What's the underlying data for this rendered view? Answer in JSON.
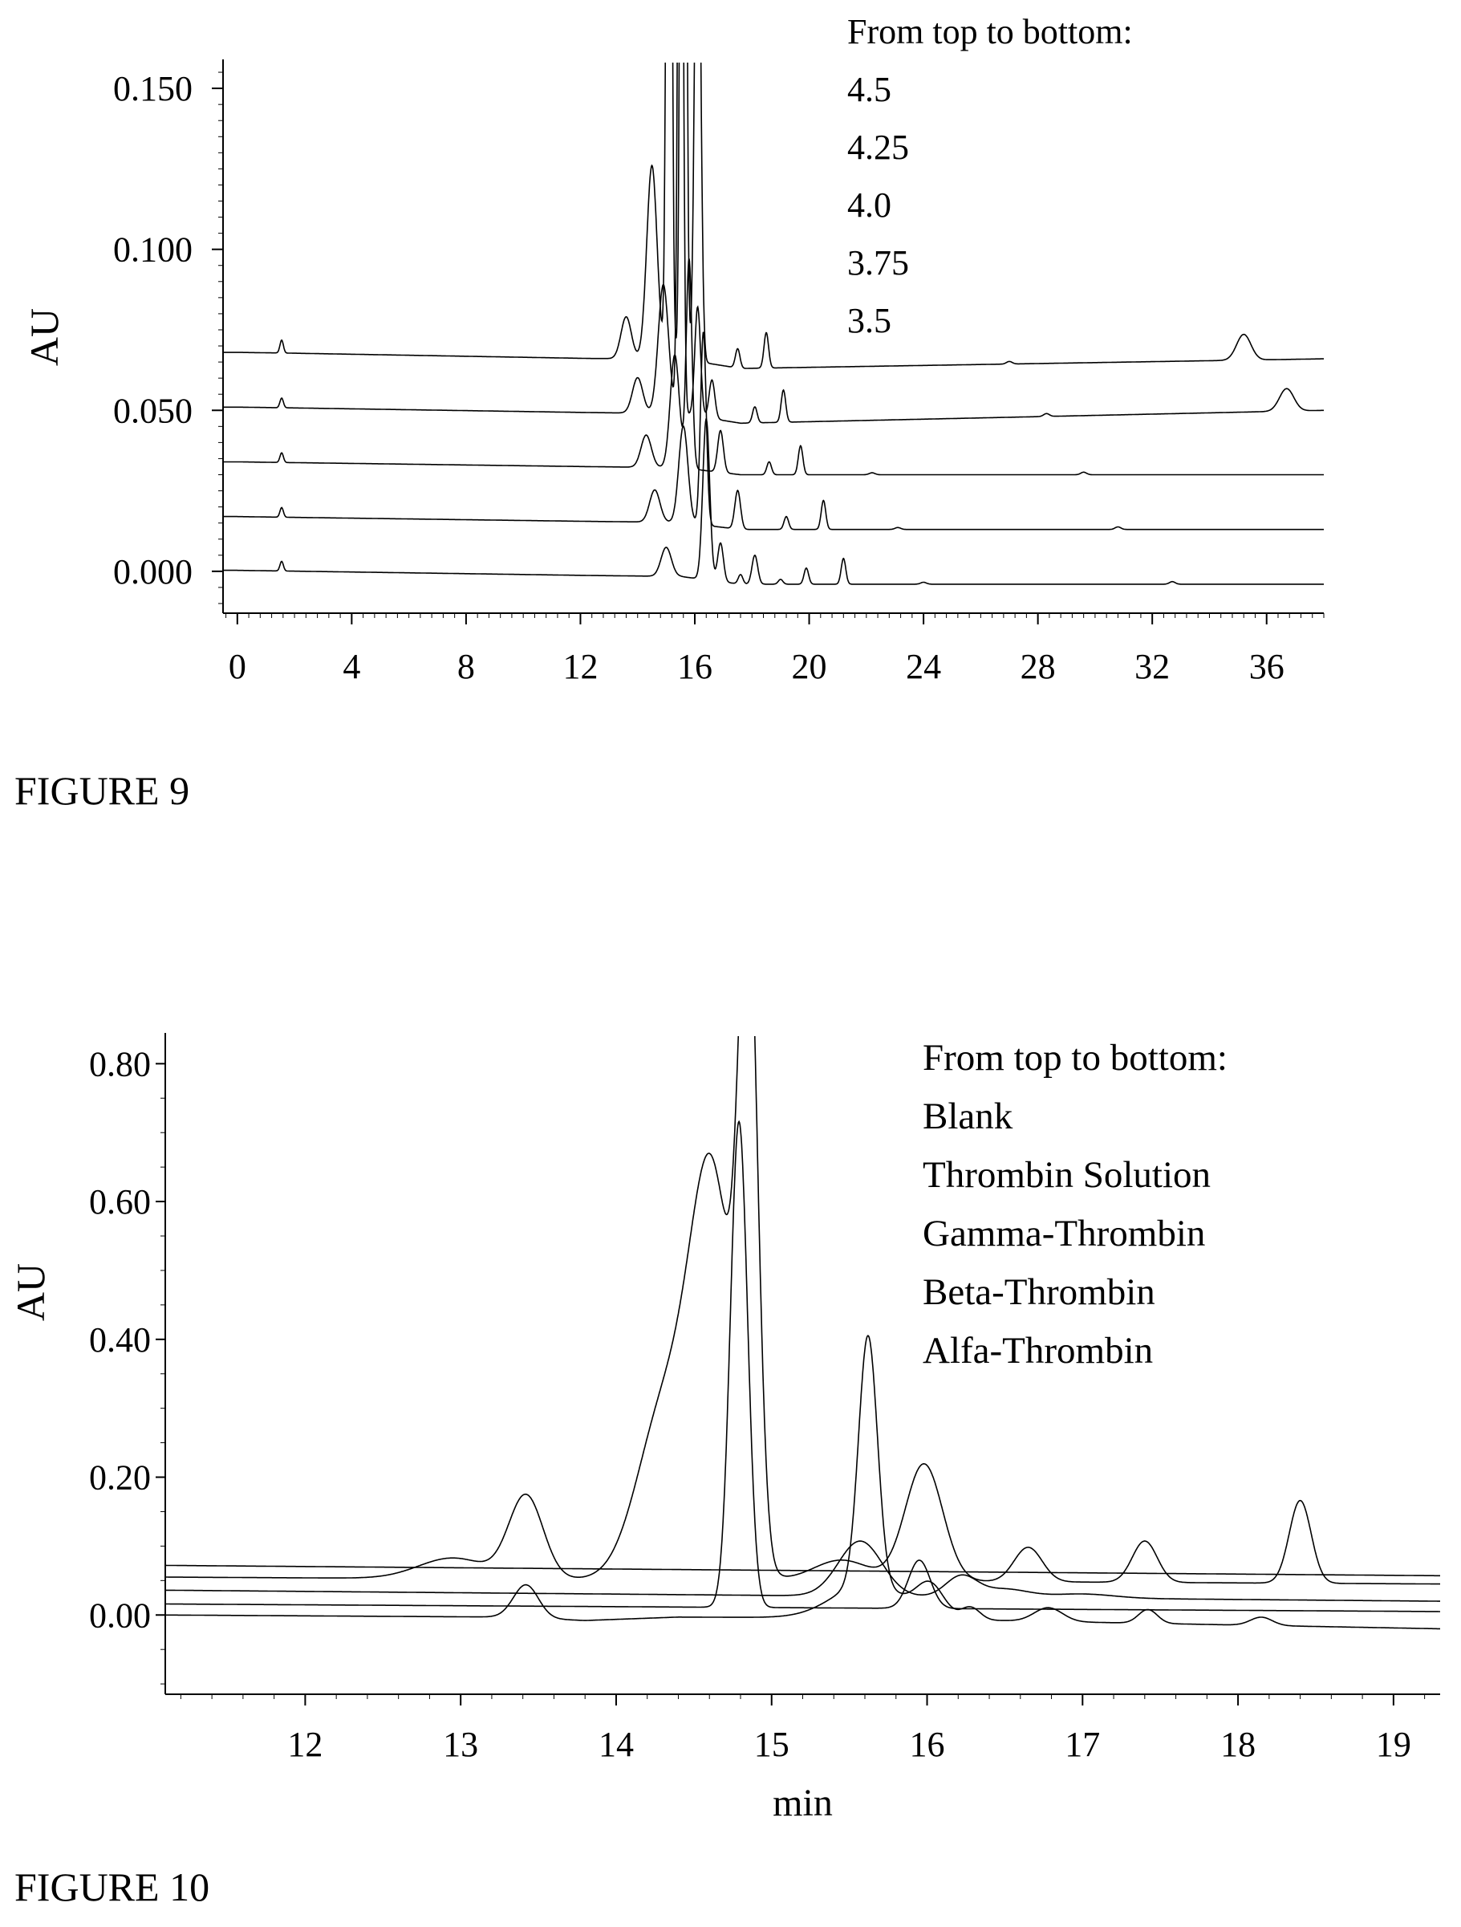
{
  "figures": [
    {
      "caption": "FIGURE 9",
      "chart_data": {
        "type": "line",
        "title": "",
        "xlabel": "",
        "ylabel": "AU",
        "xlim": [
          -0.5,
          38
        ],
        "ylim": [
          -0.013,
          0.158
        ],
        "xticks": [
          "0",
          "4",
          "8",
          "12",
          "16",
          "20",
          "24",
          "28",
          "32",
          "36"
        ],
        "yticks": [
          "0.000",
          "0.050",
          "0.100",
          "0.150"
        ],
        "annotation": [
          "From top to bottom:",
          "4.5",
          "4.25",
          "4.0",
          "3.75",
          "3.5"
        ],
        "clip_top": true,
        "series": [
          {
            "points": [
              [
                0,
                0.068
              ],
              [
                1.6,
                0.0678
              ],
              [
                12.4,
                0.0661
              ],
              [
                15.5,
                0.066
              ],
              [
                17.6,
                0.063
              ],
              [
                38,
                0.066
              ]
            ],
            "peaks": [
              [
                1.55,
                0.004,
                0.06
              ],
              [
                13.6,
                0.013,
                0.18
              ],
              [
                14.5,
                0.06,
                0.18
              ],
              [
                15.1,
                0.35,
                0.08
              ],
              [
                15.6,
                0.5,
                0.08
              ],
              [
                16.1,
                0.18,
                0.1
              ],
              [
                17.5,
                0.006,
                0.08
              ],
              [
                18.5,
                0.011,
                0.08
              ],
              [
                27,
                0.0008,
                0.1
              ],
              [
                35.2,
                0.008,
                0.25
              ]
            ]
          },
          {
            "points": [
              [
                0,
                0.051
              ],
              [
                1.6,
                0.0508
              ],
              [
                12.4,
                0.0493
              ],
              [
                15.5,
                0.049
              ],
              [
                17.6,
                0.046
              ],
              [
                38,
                0.05
              ]
            ],
            "peaks": [
              [
                1.55,
                0.003,
                0.06
              ],
              [
                14.0,
                0.011,
                0.18
              ],
              [
                14.9,
                0.04,
                0.18
              ],
              [
                15.5,
                0.3,
                0.08
              ],
              [
                16.1,
                0.034,
                0.1
              ],
              [
                16.6,
                0.012,
                0.1
              ],
              [
                18.1,
                0.005,
                0.08
              ],
              [
                19.1,
                0.01,
                0.08
              ],
              [
                28.3,
                0.0009,
                0.1
              ],
              [
                36.7,
                0.007,
                0.25
              ]
            ]
          },
          {
            "points": [
              [
                0,
                0.034
              ],
              [
                1.6,
                0.0338
              ],
              [
                12.4,
                0.0325
              ],
              [
                15.5,
                0.0322
              ],
              [
                17.6,
                0.03
              ],
              [
                38,
                0.03
              ]
            ],
            "peaks": [
              [
                1.55,
                0.003,
                0.06
              ],
              [
                14.3,
                0.01,
                0.18
              ],
              [
                15.3,
                0.035,
                0.16
              ],
              [
                15.8,
                0.065,
                0.1
              ],
              [
                16.9,
                0.013,
                0.1
              ],
              [
                18.6,
                0.004,
                0.08
              ],
              [
                19.7,
                0.009,
                0.08
              ],
              [
                22.2,
                0.0006,
                0.1
              ],
              [
                29.6,
                0.0008,
                0.1
              ]
            ]
          },
          {
            "points": [
              [
                0,
                0.017
              ],
              [
                1.6,
                0.0168
              ],
              [
                12.4,
                0.0155
              ],
              [
                15.5,
                0.0152
              ],
              [
                17.6,
                0.013
              ],
              [
                38,
                0.013
              ]
            ],
            "peaks": [
              [
                1.55,
                0.003,
                0.06
              ],
              [
                14.6,
                0.01,
                0.18
              ],
              [
                15.6,
                0.03,
                0.16
              ],
              [
                16.3,
                0.06,
                0.1
              ],
              [
                17.5,
                0.012,
                0.1
              ],
              [
                19.2,
                0.004,
                0.08
              ],
              [
                20.5,
                0.009,
                0.08
              ],
              [
                23.1,
                0.0006,
                0.1
              ],
              [
                30.8,
                0.0008,
                0.1
              ]
            ]
          },
          {
            "points": [
              [
                0,
                0.0003
              ],
              [
                1.6,
                0.0001
              ],
              [
                12.4,
                -0.0013
              ],
              [
                15.5,
                -0.0016
              ],
              [
                17.6,
                -0.004
              ],
              [
                38,
                -0.004
              ]
            ],
            "peaks": [
              [
                1.55,
                0.003,
                0.06
              ],
              [
                15.0,
                0.009,
                0.18
              ],
              [
                16.4,
                0.05,
                0.12
              ],
              [
                16.9,
                0.012,
                0.1
              ],
              [
                17.6,
                0.003,
                0.08
              ],
              [
                18.1,
                0.009,
                0.1
              ],
              [
                19.0,
                0.0015,
                0.08
              ],
              [
                19.9,
                0.005,
                0.08
              ],
              [
                21.2,
                0.008,
                0.08
              ],
              [
                24.0,
                0.0006,
                0.1
              ],
              [
                32.7,
                0.0008,
                0.1
              ]
            ]
          }
        ]
      }
    },
    {
      "caption": "FIGURE 10",
      "chart_data": {
        "type": "line",
        "title": "",
        "xlabel": "min",
        "ylabel": "AU",
        "xlim": [
          11.1,
          19.3
        ],
        "ylim": [
          -0.115,
          0.84
        ],
        "xticks": [
          "12",
          "13",
          "14",
          "15",
          "16",
          "17",
          "18",
          "19"
        ],
        "yticks": [
          "0.00",
          "0.20",
          "0.40",
          "0.60",
          "0.80"
        ],
        "annotation": [
          "From top to bottom:",
          "Blank",
          "Thrombin Solution",
          "Gamma-Thrombin",
          "Beta-Thrombin",
          "Alfa-Thrombin"
        ],
        "clip_top": true,
        "series": [
          {
            "points": [
              [
                11.1,
                0.072
              ],
              [
                19.3,
                0.057
              ]
            ],
            "peaks": []
          },
          {
            "points": [
              [
                11.1,
                0.055
              ],
              [
                19.3,
                0.045
              ]
            ],
            "peaks": [
              [
                12.95,
                0.03,
                0.22
              ],
              [
                13.42,
                0.12,
                0.11
              ],
              [
                14.32,
                0.25,
                0.18
              ],
              [
                14.62,
                0.55,
                0.14
              ],
              [
                14.85,
                0.9,
                0.06
              ],
              [
                15.45,
                0.03,
                0.18
              ],
              [
                15.98,
                0.17,
                0.12
              ],
              [
                16.65,
                0.05,
                0.09
              ],
              [
                17.4,
                0.06,
                0.08
              ],
              [
                18.4,
                0.12,
                0.07
              ]
            ]
          },
          {
            "points": [
              [
                11.1,
                0.036
              ],
              [
                19.3,
                0.02
              ]
            ],
            "peaks": [
              [
                15.57,
                0.08,
                0.14
              ],
              [
                16.22,
                0.03,
                0.1
              ],
              [
                16.5,
                0.012,
                0.15
              ],
              [
                17.0,
                0.006,
                0.2
              ]
            ]
          },
          {
            "points": [
              [
                11.1,
                0.016
              ],
              [
                19.3,
                0.005
              ]
            ],
            "peaks": [
              [
                14.79,
                0.705,
                0.055
              ],
              [
                15.95,
                0.07,
                0.07
              ]
            ]
          },
          {
            "points": [
              [
                11.1,
                0.0
              ],
              [
                13.3,
                -0.003
              ],
              [
                13.8,
                -0.008
              ],
              [
                14.4,
                -0.003
              ],
              [
                15.5,
                -0.004
              ],
              [
                19.3,
                -0.02
              ]
            ],
            "peaks": [
              [
                13.42,
                0.048,
                0.08
              ],
              [
                15.62,
                0.36,
                0.06
              ],
              [
                15.62,
                0.05,
                0.22
              ],
              [
                16.02,
                0.045,
                0.09
              ],
              [
                16.28,
                0.018,
                0.06
              ],
              [
                16.78,
                0.02,
                0.09
              ],
              [
                17.42,
                0.02,
                0.06
              ],
              [
                18.15,
                0.012,
                0.07
              ]
            ]
          }
        ]
      }
    }
  ]
}
